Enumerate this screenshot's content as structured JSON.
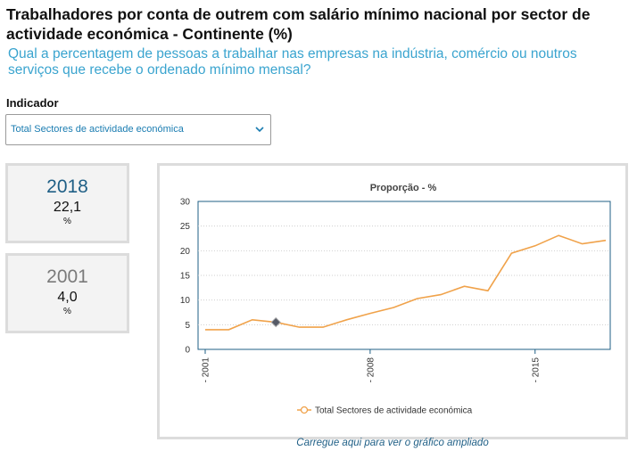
{
  "header": {
    "title": "Trabalhadores por conta de outrem com salário mínimo nacional por sector de actividade económica - Continente (%)",
    "subtitle": "Qual a percentagem de pessoas a trabalhar nas empresas na indústria, comércio ou noutros serviços que recebe o ordenado mínimo mensal?"
  },
  "indicator": {
    "label": "Indicador",
    "selected": "Total Sectores de actividade económica"
  },
  "cards": [
    {
      "year": "2018",
      "value": "22,1",
      "unit": "%"
    },
    {
      "year": "2001",
      "value": "4,0",
      "unit": "%"
    }
  ],
  "link_text": "Carregue aqui para ver o gráfico ampliado",
  "colors": {
    "series": "#f0a24a",
    "accent": "#1f5f86",
    "highlight_marker": "#555a66"
  },
  "chart_data": {
    "type": "line",
    "title": "Proporção - %",
    "xlabel": "",
    "ylabel": "",
    "x": [
      2001,
      2002,
      2003,
      2004,
      2005,
      2006,
      2007,
      2008,
      2009,
      2010,
      2011,
      2012,
      2013,
      2014,
      2015,
      2016,
      2017,
      2018
    ],
    "x_tick_labels": [
      "2001",
      "2008",
      "2015"
    ],
    "series": [
      {
        "name": "Total Sectores de actividade económica",
        "values": [
          4.0,
          4.0,
          6.0,
          5.5,
          4.5,
          4.5,
          6.0,
          7.3,
          8.5,
          10.3,
          11.1,
          12.8,
          11.9,
          19.5,
          21.0,
          23.1,
          21.4,
          22.1
        ]
      }
    ],
    "highlight_x": 2004,
    "ylim": [
      0,
      30
    ],
    "yticks": [
      0,
      5,
      10,
      15,
      20,
      25,
      30
    ],
    "grid": true,
    "legend": "bottom"
  }
}
